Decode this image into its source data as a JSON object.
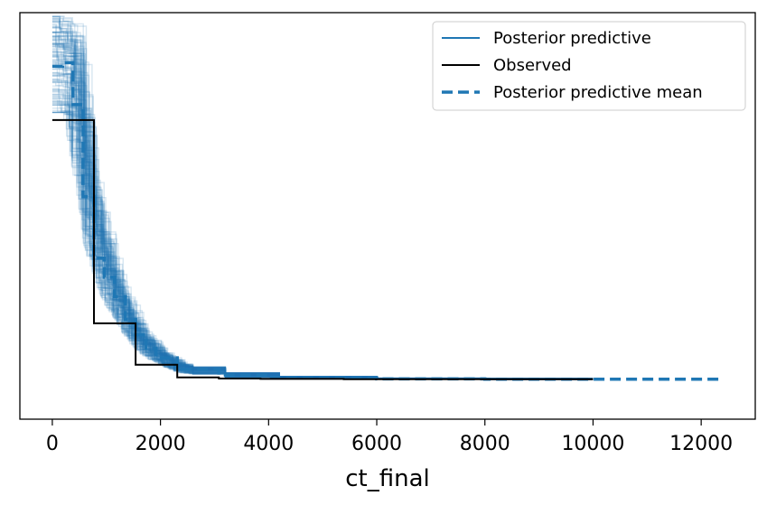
{
  "chart_data": {
    "type": "line",
    "title": "",
    "xlabel": "ct_final",
    "ylabel": "",
    "xlim": [
      -600,
      13000
    ],
    "ylim": [
      -0.06,
      1.0
    ],
    "xticks": [
      0,
      2000,
      4000,
      6000,
      8000,
      10000,
      12000
    ],
    "x_tick_labels": [
      "0",
      "2000",
      "4000",
      "6000",
      "8000",
      "10000",
      "12000"
    ],
    "y_ticks_visible": false,
    "legend": {
      "position": "top-right",
      "entries": [
        "Posterior predictive",
        "Observed",
        "Posterior predictive mean"
      ]
    },
    "colors": {
      "posterior_predictive": "#1f77b4",
      "observed": "#000000",
      "posterior_predictive_mean": "#1f77b4"
    },
    "series": [
      {
        "name": "Observed",
        "style": "step",
        "x": [
          0,
          770,
          1540,
          2310,
          3080,
          3850,
          4620,
          5390,
          6160,
          6930,
          7700,
          8470,
          9240,
          10000
        ],
        "y": [
          0.72,
          0.19,
          0.082,
          0.049,
          0.046,
          0.045,
          0.045,
          0.044,
          0.044,
          0.044,
          0.044,
          0.044,
          0.044,
          0.044
        ]
      },
      {
        "name": "Posterior predictive mean",
        "style": "dashed-step",
        "x": [
          0,
          190,
          380,
          570,
          770,
          960,
          1150,
          1350,
          1540,
          1730,
          1920,
          2310,
          3080,
          4000,
          6000,
          8000,
          10000,
          12400
        ],
        "y": [
          0.86,
          0.87,
          0.76,
          0.52,
          0.36,
          0.31,
          0.26,
          0.2,
          0.16,
          0.125,
          0.1,
          0.07,
          0.055,
          0.048,
          0.045,
          0.044,
          0.044,
          0.044
        ]
      },
      {
        "name": "Posterior predictive",
        "style": "step-ensemble",
        "draws": 120,
        "x_extent": [
          0,
          10000
        ],
        "upper_envelope": {
          "x": [
            0,
            190,
            380,
            570,
            770,
            960,
            1150,
            1350,
            1540,
            1730,
            1920,
            2310,
            3080,
            4000,
            6000,
            10000
          ],
          "y": [
            0.99,
            0.99,
            0.97,
            0.72,
            0.5,
            0.4,
            0.3,
            0.24,
            0.18,
            0.15,
            0.12,
            0.085,
            0.062,
            0.052,
            0.047,
            0.045
          ]
        },
        "lower_envelope": {
          "x": [
            0,
            190,
            380,
            570,
            770,
            960,
            1150,
            1350,
            1540,
            1730,
            1920,
            2310,
            3080,
            4000,
            6000,
            10000
          ],
          "y": [
            0.74,
            0.74,
            0.58,
            0.4,
            0.3,
            0.24,
            0.2,
            0.15,
            0.12,
            0.1,
            0.085,
            0.062,
            0.05,
            0.046,
            0.044,
            0.043
          ]
        }
      }
    ]
  }
}
